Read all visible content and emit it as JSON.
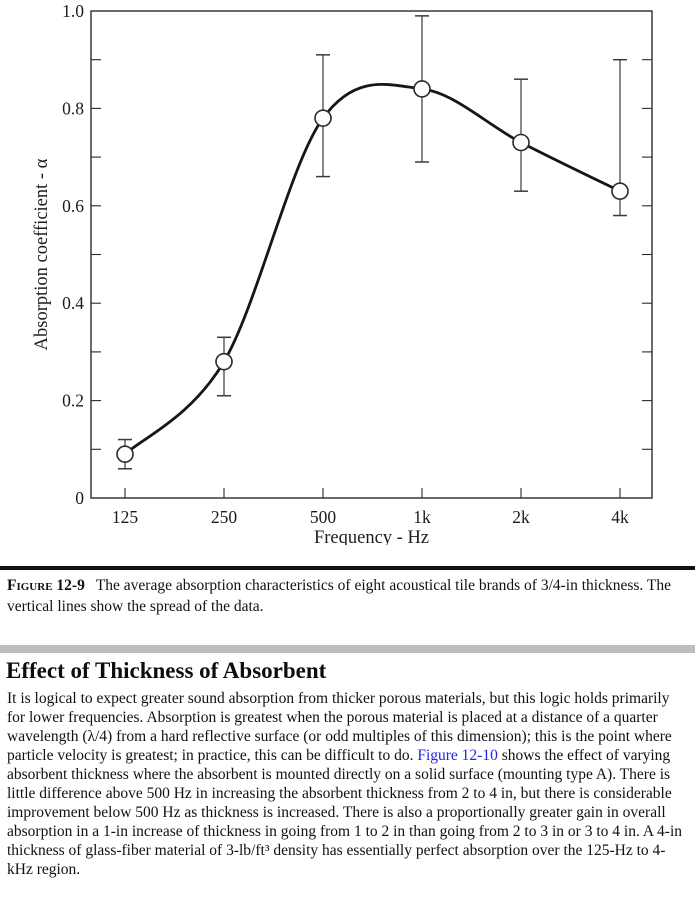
{
  "chart_data": {
    "type": "line",
    "title": "",
    "xlabel": "Frequency - Hz",
    "ylabel": "Absorption coefficient - α",
    "categories": [
      "125",
      "250",
      "500",
      "1k",
      "2k",
      "4k"
    ],
    "values": [
      0.09,
      0.28,
      0.78,
      0.84,
      0.73,
      0.63
    ],
    "error_low": [
      0.06,
      0.21,
      0.66,
      0.69,
      0.63,
      0.58
    ],
    "error_high": [
      0.12,
      0.33,
      0.91,
      0.99,
      0.86,
      0.9
    ],
    "ylim": [
      0,
      1.0
    ],
    "ytick_labels": [
      "0",
      "0.2",
      "0.4",
      "0.6",
      "0.8",
      "1.0"
    ],
    "ytick_minor_step": 0.1,
    "grid": false,
    "marker": "open-circle",
    "line_color": "#161616"
  },
  "caption": {
    "label": "Figure 12-9",
    "text": "The average absorption characteristics of eight acoustical tile brands of 3/4-in thickness. The vertical lines show the spread of the data."
  },
  "section": {
    "heading": "Effect of Thickness of Absorbent",
    "paragraph": {
      "part1": "It is logical to expect greater sound absorption from thicker porous materials, but this logic holds primarily for lower frequencies. Absorption is greatest when the porous material is placed at a distance of a quarter wavelength (λ/4) from a hard reflective surface (or odd multiples of this dimension); this is the point where particle velocity is greatest; in practice, this can be difficult to do. ",
      "link": "Figure 12-10",
      "part2": " shows the effect of varying absorbent thickness where the absorbent is mounted directly on a solid surface (mounting type A). There is little difference above 500 Hz in increasing the absorbent thickness from 2 to 4 in, but there is considerable improvement below 500 Hz as thickness is increased. There is also a proportionally greater gain in overall absorption in a 1-in increase of thickness in going from 1 to 2 in than going from 2 to 3 in or 3 to 4 in. A 4-in thickness of glass-fiber material of 3-lb/ft³ density has essentially perfect absorption over the 125-Hz to 4-kHz region."
    }
  },
  "colors": {
    "link": "#2222e0",
    "rule_black": "#111111",
    "rule_gray": "#bdbdc1"
  }
}
